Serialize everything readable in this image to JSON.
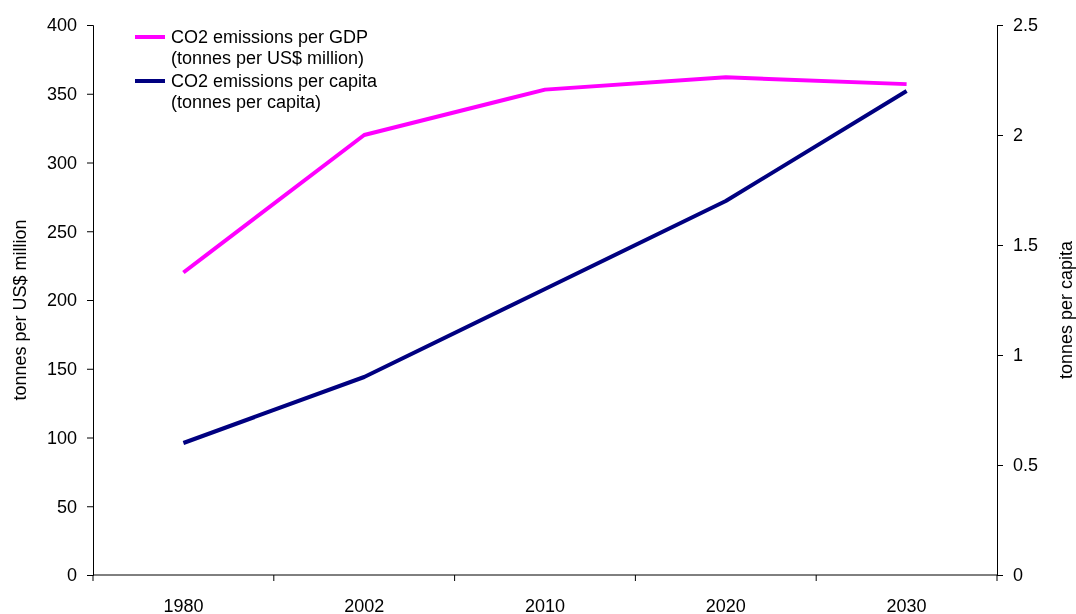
{
  "chart_data": {
    "type": "line",
    "categories": [
      "1980",
      "2002",
      "2010",
      "2020",
      "2030"
    ],
    "series": [
      {
        "name": "CO2 emissions per GDP (tonnes per US$ million)",
        "color": "#ff00ff",
        "values": [
          220,
          320,
          353,
          362,
          357
        ]
      },
      {
        "name": "CO2 emissions per capita (tonnes per capita)",
        "color": "#000080",
        "values": [
          0.6,
          0.9,
          1.3,
          1.7,
          2.2
        ],
        "axis": "y2"
      }
    ],
    "ylabel": "tonnes per US$ million",
    "y2label": "tonnes per capita",
    "ylim": [
      0,
      400
    ],
    "yticks": [
      0,
      50,
      100,
      150,
      200,
      250,
      300,
      350,
      400
    ],
    "y2lim": [
      0,
      2.5
    ],
    "y2ticks": [
      0,
      0.5,
      1,
      1.5,
      2,
      2.5
    ],
    "legend": "top left",
    "grid": false,
    "marker": "none",
    "line_style": "solid"
  }
}
